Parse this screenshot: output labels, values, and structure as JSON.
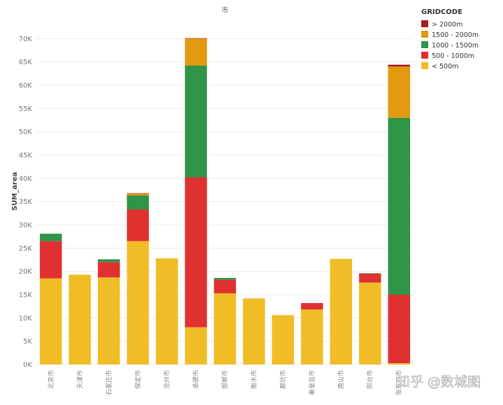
{
  "chart_data": {
    "type": "bar",
    "stacked": true,
    "title": "市",
    "ylabel": "SUM_area",
    "ylim": [
      0,
      72000
    ],
    "yticks": [
      0,
      5000,
      10000,
      15000,
      20000,
      25000,
      30000,
      35000,
      40000,
      45000,
      50000,
      55000,
      60000,
      65000,
      70000
    ],
    "ytick_labels": [
      "0K",
      "5K",
      "10K",
      "15K",
      "20K",
      "25K",
      "30K",
      "35K",
      "40K",
      "45K",
      "50K",
      "55K",
      "60K",
      "65K",
      "70K"
    ],
    "categories": [
      "北京市",
      "天津市",
      "石家庄市",
      "保定市",
      "沧州市",
      "承德市",
      "邯郸市",
      "衡水市",
      "廊坊市",
      "秦皇岛市",
      "唐山市",
      "邢台市",
      "张家口市"
    ],
    "grid": "y",
    "legend": {
      "title": "GRIDCODE",
      "placement": "top-right",
      "order": [
        "> 2000m",
        "1500 - 2000m",
        "1000 - 1500m",
        "500 - 1000m",
        "< 500m"
      ]
    },
    "series": [
      {
        "name": "< 500m",
        "color": "#f0bd27",
        "values": [
          18500,
          19300,
          18700,
          26500,
          22800,
          8000,
          15300,
          14200,
          10600,
          11800,
          22700,
          17600,
          300
        ]
      },
      {
        "name": "500 - 1000m",
        "color": "#e03131",
        "values": [
          8000,
          0,
          3300,
          6800,
          0,
          32200,
          2900,
          0,
          0,
          1400,
          0,
          1900,
          14700
        ]
      },
      {
        "name": "1000 - 1500m",
        "color": "#2f9447",
        "values": [
          1600,
          0,
          600,
          3000,
          0,
          24000,
          400,
          0,
          0,
          0,
          0,
          100,
          38000
        ]
      },
      {
        "name": "1500 - 2000m",
        "color": "#e3990f",
        "values": [
          0,
          0,
          0,
          400,
          0,
          5800,
          0,
          0,
          0,
          0,
          0,
          0,
          11000
        ]
      },
      {
        "name": "> 2000m",
        "color": "#a61c1c",
        "values": [
          0,
          0,
          0,
          100,
          0,
          100,
          0,
          0,
          0,
          0,
          0,
          0,
          400
        ]
      }
    ]
  },
  "watermark": "知乎 @数城图"
}
